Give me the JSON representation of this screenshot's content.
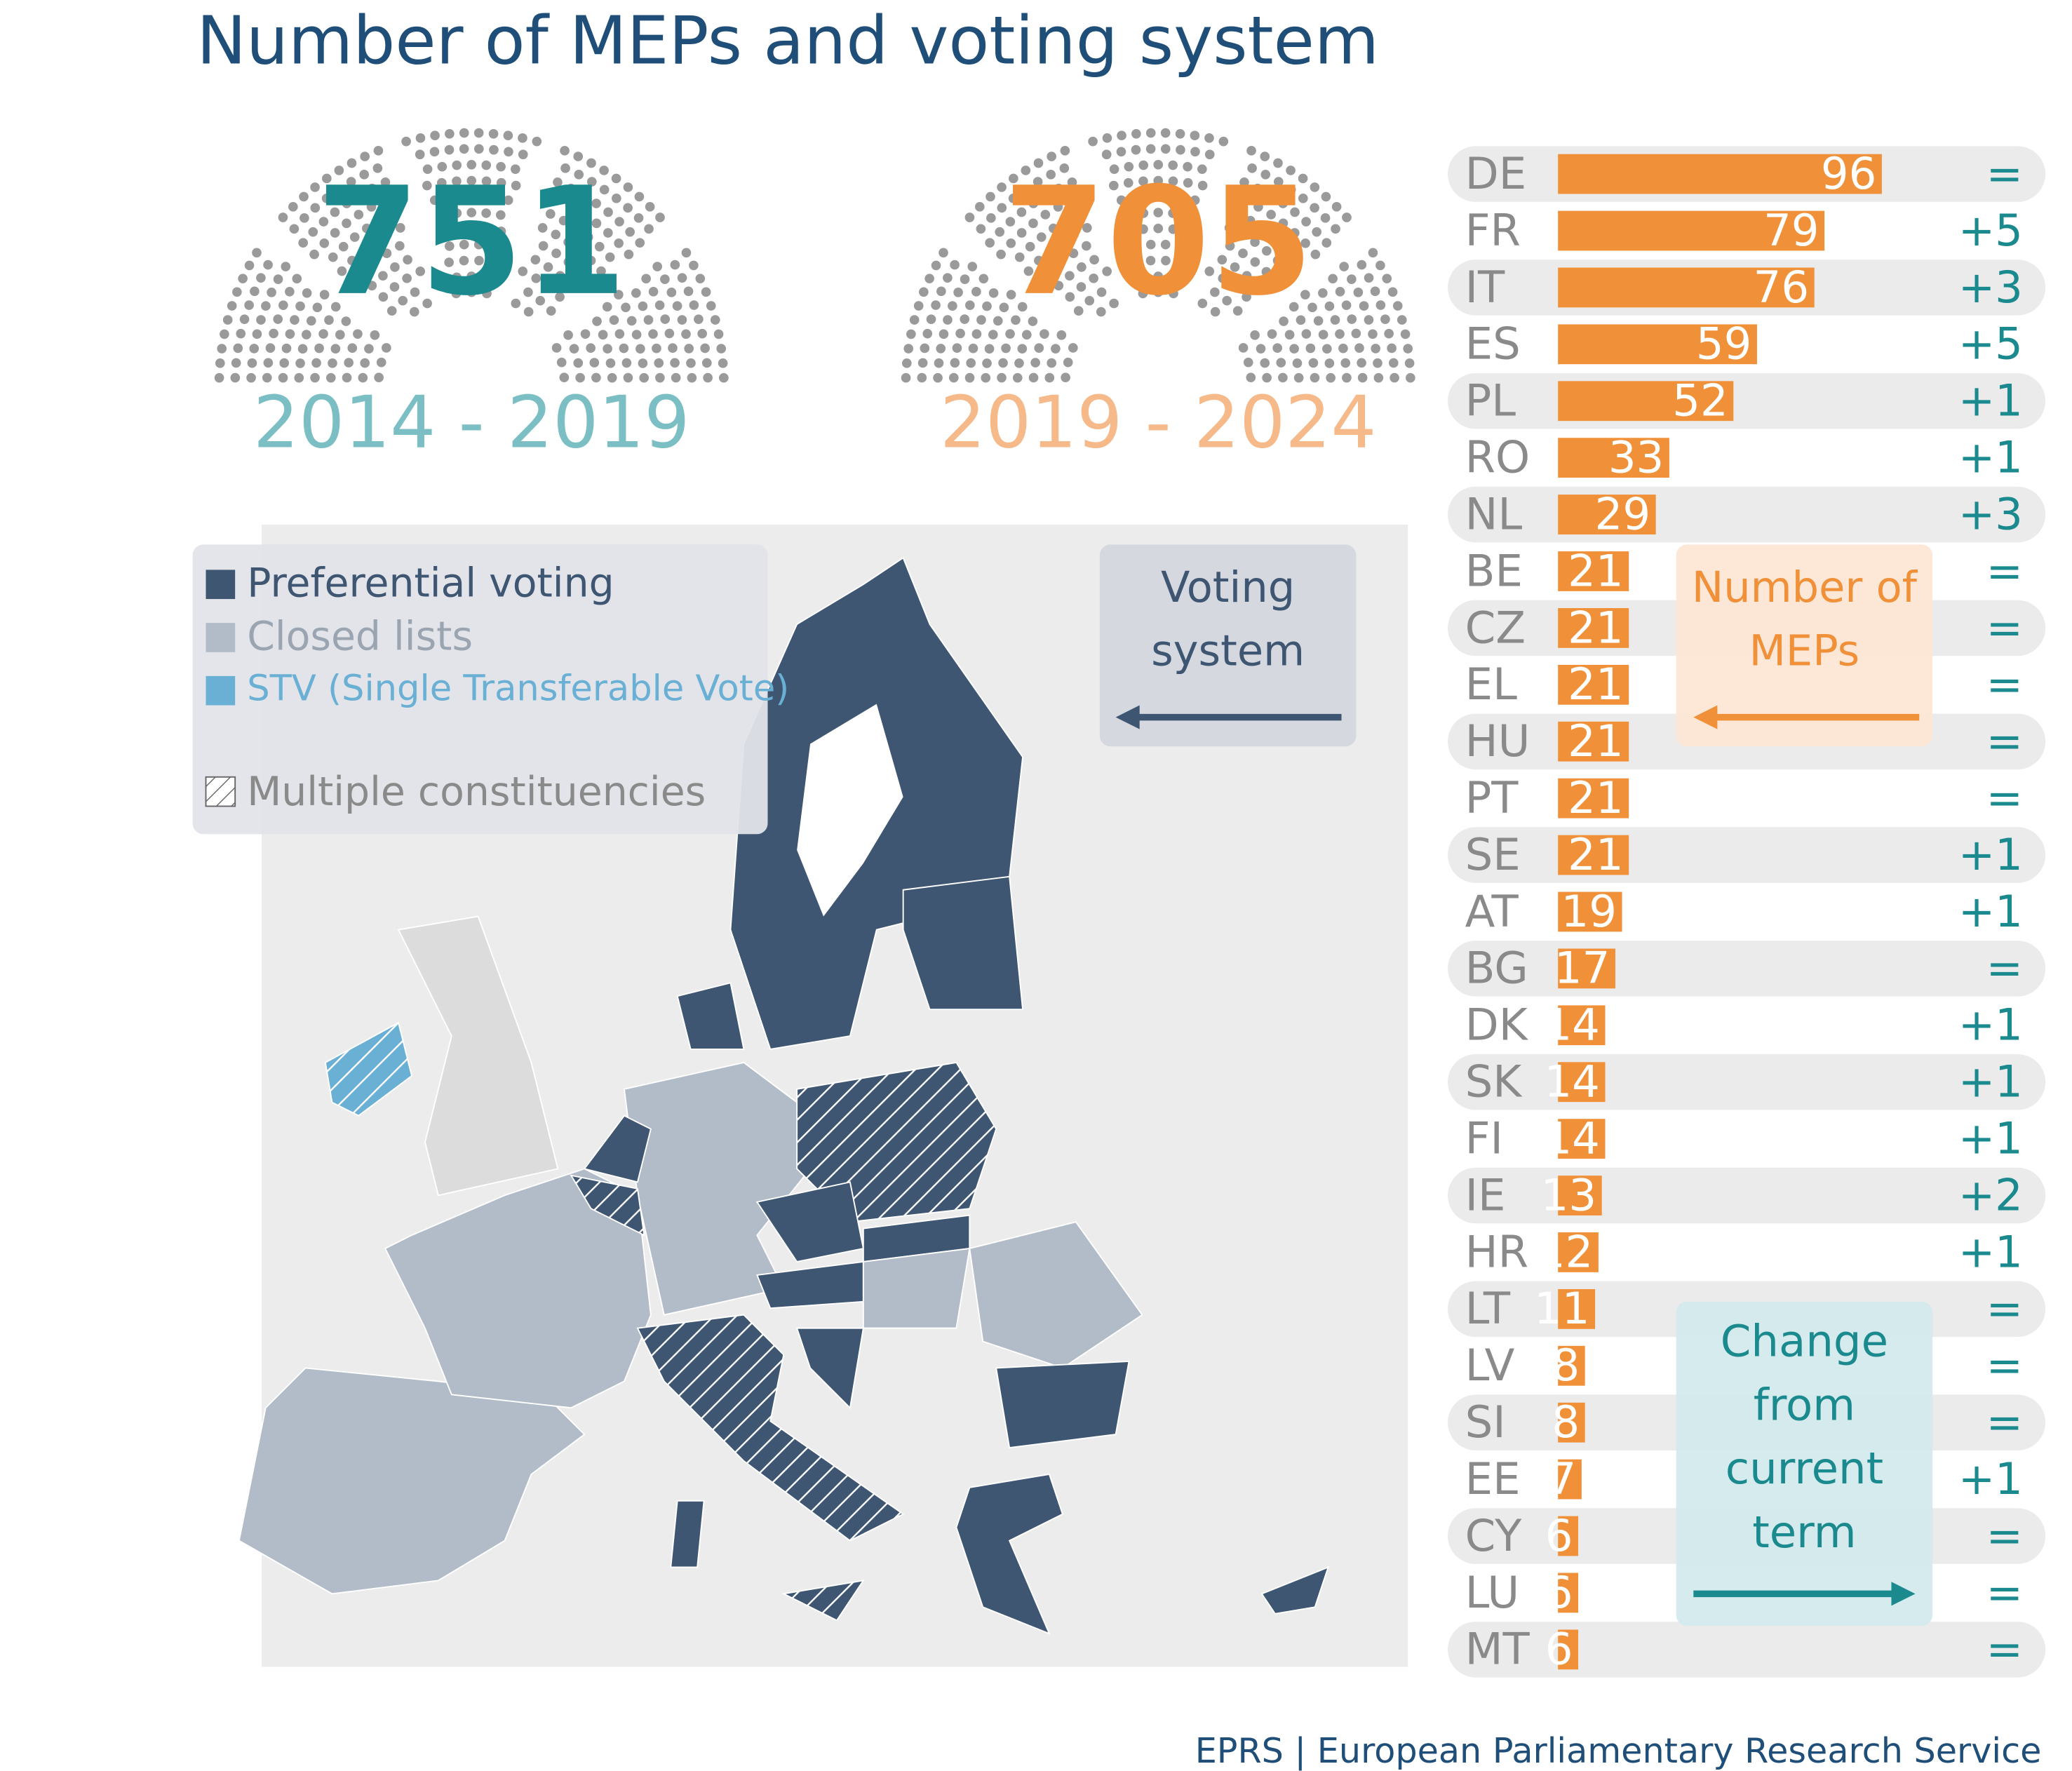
{
  "title": "Number of MEPs and voting system",
  "terms": [
    {
      "seats": 751,
      "period": "2014 - 2019"
    },
    {
      "seats": 705,
      "period": "2019 - 2024"
    }
  ],
  "voting_legend": {
    "title": "Voting system",
    "items": [
      "Preferential voting",
      "Closed lists",
      "STV (Single Transferable Vote)",
      "Multiple constituencies"
    ]
  },
  "chart_data": {
    "type": "bar",
    "orientation": "horizontal",
    "categories": [
      "DE",
      "FR",
      "IT",
      "ES",
      "PL",
      "RO",
      "NL",
      "BE",
      "CZ",
      "EL",
      "HU",
      "PT",
      "SE",
      "AT",
      "BG",
      "DK",
      "SK",
      "FI",
      "IE",
      "HR",
      "LT",
      "LV",
      "SI",
      "EE",
      "CY",
      "LU",
      "MT"
    ],
    "series": [
      {
        "name": "Number of MEPs",
        "color": "#f0913a",
        "values": [
          96,
          79,
          76,
          59,
          52,
          33,
          29,
          21,
          21,
          21,
          21,
          21,
          21,
          19,
          17,
          14,
          14,
          14,
          13,
          12,
          11,
          8,
          8,
          7,
          6,
          6,
          6
        ]
      },
      {
        "name": "Change from current term",
        "color": "#1b8a8f",
        "values": [
          0,
          5,
          3,
          5,
          1,
          1,
          3,
          0,
          0,
          0,
          0,
          0,
          1,
          1,
          0,
          1,
          1,
          1,
          2,
          1,
          0,
          0,
          0,
          1,
          0,
          0,
          0
        ],
        "value_labels": [
          "=",
          "+5",
          "+3",
          "+5",
          "+1",
          "+1",
          "+3",
          "=",
          "=",
          "=",
          "=",
          "=",
          "+1",
          "+1",
          "=",
          "+1",
          "+1",
          "+1",
          "+2",
          "+1",
          "=",
          "=",
          "=",
          "+1",
          "=",
          "=",
          "="
        ]
      }
    ]
  },
  "source": "EPRS | European Parliamentary Research Service"
}
